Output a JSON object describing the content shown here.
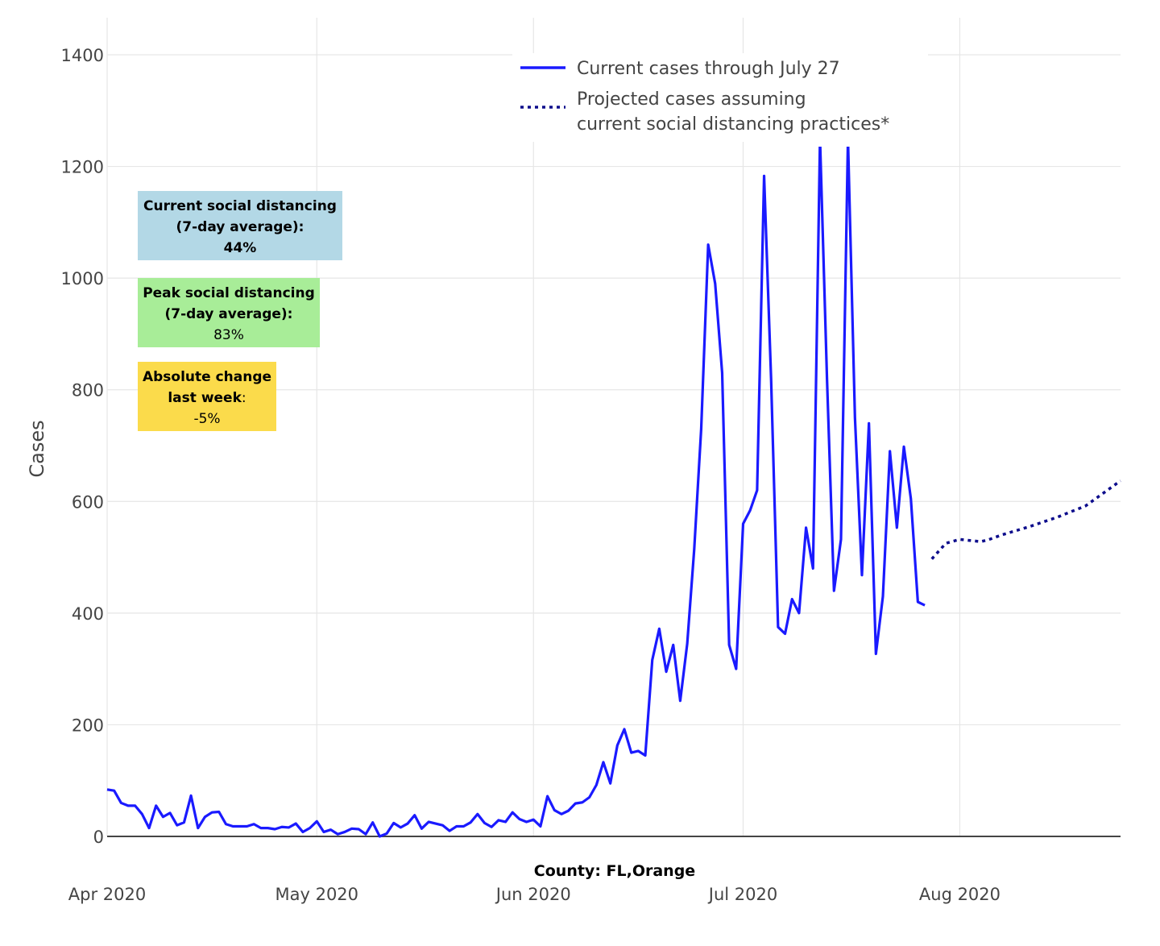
{
  "chart_data": {
    "type": "line",
    "ylabel": "Cases",
    "xlabel": "County: FL,Orange",
    "x_axis_type": "date",
    "xlim": [
      "2020-04-01",
      "2020-08-24"
    ],
    "ylim": [
      0,
      1400
    ],
    "y_ticks": [
      0,
      200,
      400,
      600,
      800,
      1000,
      1200,
      1400
    ],
    "x_ticks": [
      {
        "date": "2020-04-01",
        "label": "Apr 2020"
      },
      {
        "date": "2020-05-01",
        "label": "May 2020"
      },
      {
        "date": "2020-06-01",
        "label": "Jun 2020"
      },
      {
        "date": "2020-07-01",
        "label": "Jul 2020"
      },
      {
        "date": "2020-08-01",
        "label": "Aug 2020"
      }
    ],
    "grid": true,
    "legend_position": "top-center",
    "series": [
      {
        "name": "Current cases through July 27",
        "style": "solid",
        "color": "#1a1aff",
        "x_start": "2020-04-01",
        "values": [
          84,
          82,
          60,
          55,
          55,
          40,
          15,
          55,
          35,
          42,
          20,
          25,
          73,
          15,
          35,
          43,
          44,
          22,
          18,
          18,
          18,
          22,
          15,
          15,
          13,
          17,
          16,
          23,
          8,
          15,
          27,
          8,
          12,
          4,
          8,
          14,
          13,
          4,
          25,
          0,
          5,
          24,
          16,
          23,
          38,
          14,
          26,
          23,
          20,
          10,
          18,
          18,
          25,
          40,
          24,
          17,
          29,
          26,
          43,
          31,
          26,
          30,
          18,
          72,
          47,
          40,
          46,
          59,
          61,
          70,
          92,
          133,
          95,
          163,
          192,
          150,
          153,
          145,
          316,
          372,
          295,
          343,
          243,
          345,
          514,
          730,
          1060,
          990,
          830,
          343,
          300,
          560,
          584,
          620,
          1183,
          820,
          375,
          363,
          425,
          400,
          553,
          480,
          1250,
          820,
          440,
          532,
          1250,
          750,
          468,
          740,
          327,
          430,
          690,
          553,
          698,
          605,
          420,
          414
        ]
      },
      {
        "name": "Projected cases assuming current social distancing practices*",
        "style": "dotted",
        "color": "#0d0d8c",
        "points": [
          [
            "2020-07-28",
            497
          ],
          [
            "2020-07-30",
            525
          ],
          [
            "2020-08-01",
            532
          ],
          [
            "2020-08-04",
            528
          ],
          [
            "2020-08-05",
            531
          ],
          [
            "2020-08-07",
            540
          ],
          [
            "2020-08-11",
            555
          ],
          [
            "2020-08-15",
            572
          ],
          [
            "2020-08-19",
            592
          ],
          [
            "2020-08-24",
            637
          ]
        ]
      }
    ],
    "annotations": [
      {
        "lines": [
          "Current social distancing",
          "(7-day average):",
          "44%"
        ],
        "bold": [
          true,
          true,
          true
        ],
        "bg": "#b3d8e6"
      },
      {
        "lines": [
          "Peak social distancing",
          "(7-day average):",
          "83%"
        ],
        "bold": [
          true,
          true,
          false
        ],
        "bg": "#a8ed98"
      },
      {
        "lines": [
          "Absolute change",
          "last week",
          ":",
          "-5%"
        ],
        "bold": [
          true,
          true,
          false,
          false
        ],
        "bg": "#fbdb4b"
      }
    ]
  }
}
